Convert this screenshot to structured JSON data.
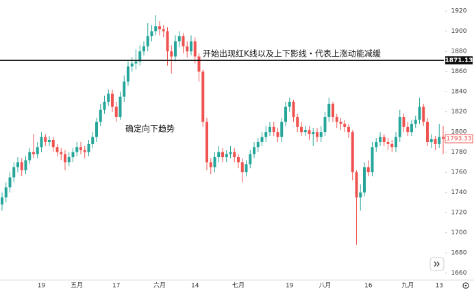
{
  "chart_data": {
    "type": "candlestick",
    "annotations": [
      "开始出现红K线以及上下影线・代表上涨动能减缓",
      "确定向下趋势"
    ],
    "hline": 1871.13,
    "up_color": "#26a69a",
    "down_color": "#ef5350",
    "ylim": [
      1653,
      1931
    ],
    "yticks": [
      1660,
      1680,
      1700,
      1720,
      1740,
      1760,
      1780,
      1800,
      1820,
      1840,
      1860,
      1880,
      1900,
      1920
    ],
    "categories": [
      null,
      null,
      null,
      null,
      null,
      null,
      null,
      null,
      null,
      null,
      "19",
      null,
      null,
      null,
      null,
      null,
      null,
      null,
      null,
      "五月",
      null,
      null,
      null,
      null,
      null,
      null,
      null,
      null,
      null,
      "17",
      null,
      null,
      null,
      null,
      null,
      null,
      null,
      null,
      null,
      null,
      "六月",
      null,
      null,
      null,
      null,
      null,
      null,
      null,
      null,
      "14",
      null,
      null,
      null,
      null,
      null,
      null,
      null,
      null,
      null,
      null,
      "七月",
      null,
      null,
      null,
      null,
      null,
      null,
      null,
      null,
      null,
      null,
      null,
      null,
      "19",
      null,
      null,
      null,
      null,
      null,
      null,
      null,
      null,
      "八月",
      null,
      null,
      null,
      null,
      null,
      null,
      null,
      null,
      null,
      null,
      "16",
      null,
      null,
      null,
      null,
      null,
      null,
      null,
      null,
      null,
      "九月",
      null,
      null,
      null,
      null,
      null,
      null,
      null,
      "13",
      null
    ],
    "open": [
      1728,
      1735,
      1745,
      1755,
      1765,
      1770,
      1762,
      1772,
      1780,
      1778,
      1785,
      1795,
      1790,
      1792,
      1785,
      1780,
      1778,
      1770,
      1775,
      1780,
      1785,
      1782,
      1780,
      1788,
      1795,
      1810,
      1822,
      1830,
      1838,
      1825,
      1815,
      1835,
      1850,
      1865,
      1868,
      1870,
      1880,
      1885,
      1895,
      1900,
      1905,
      1902,
      1900,
      1880,
      1875,
      1890,
      1895,
      1885,
      1880,
      1890,
      1875,
      1860,
      1810,
      1770,
      1765,
      1775,
      1780,
      1775,
      1778,
      1780,
      1775,
      1770,
      1760,
      1768,
      1778,
      1785,
      1790,
      1795,
      1800,
      1805,
      1800,
      1795,
      1810,
      1825,
      1830,
      1815,
      1805,
      1800,
      1802,
      1798,
      1800,
      1795,
      1800,
      1815,
      1828,
      1815,
      1810,
      1808,
      1805,
      1800,
      1760,
      1735,
      1740,
      1765,
      1760,
      1785,
      1790,
      1795,
      1790,
      1788,
      1785,
      1795,
      1815,
      1805,
      1800,
      1808,
      1812,
      1825,
      1810,
      1790,
      1793,
      1788,
      1795
    ],
    "high": [
      1740,
      1750,
      1760,
      1770,
      1775,
      1774,
      1776,
      1784,
      1798,
      1790,
      1800,
      1798,
      1796,
      1795,
      1788,
      1784,
      1782,
      1780,
      1784,
      1790,
      1790,
      1786,
      1792,
      1800,
      1814,
      1828,
      1836,
      1842,
      1842,
      1830,
      1840,
      1856,
      1870,
      1874,
      1882,
      1886,
      1890,
      1908,
      1906,
      1916,
      1910,
      1906,
      1904,
      1886,
      1896,
      1900,
      1898,
      1890,
      1896,
      1894,
      1878,
      1862,
      1814,
      1774,
      1780,
      1786,
      1784,
      1782,
      1786,
      1784,
      1778,
      1774,
      1772,
      1782,
      1790,
      1794,
      1800,
      1806,
      1810,
      1810,
      1804,
      1814,
      1830,
      1834,
      1832,
      1818,
      1810,
      1806,
      1806,
      1804,
      1804,
      1806,
      1820,
      1834,
      1830,
      1818,
      1814,
      1812,
      1808,
      1802,
      1762,
      1748,
      1770,
      1772,
      1790,
      1794,
      1800,
      1798,
      1794,
      1792,
      1800,
      1822,
      1818,
      1810,
      1812,
      1816,
      1834,
      1828,
      1814,
      1798,
      1796,
      1808,
      1806
    ],
    "low": [
      1722,
      1730,
      1740,
      1750,
      1760,
      1756,
      1758,
      1768,
      1774,
      1774,
      1780,
      1786,
      1786,
      1780,
      1776,
      1772,
      1762,
      1766,
      1770,
      1776,
      1778,
      1774,
      1776,
      1784,
      1790,
      1806,
      1818,
      1826,
      1820,
      1810,
      1812,
      1830,
      1846,
      1860,
      1862,
      1866,
      1876,
      1880,
      1890,
      1896,
      1896,
      1894,
      1866,
      1858,
      1870,
      1884,
      1878,
      1874,
      1876,
      1868,
      1850,
      1805,
      1762,
      1758,
      1760,
      1770,
      1770,
      1770,
      1774,
      1770,
      1764,
      1750,
      1756,
      1764,
      1774,
      1780,
      1786,
      1790,
      1796,
      1796,
      1790,
      1790,
      1806,
      1820,
      1810,
      1800,
      1796,
      1796,
      1792,
      1786,
      1790,
      1790,
      1796,
      1810,
      1810,
      1804,
      1802,
      1800,
      1794,
      1752,
      1688,
      1722,
      1736,
      1756,
      1756,
      1780,
      1786,
      1786,
      1782,
      1780,
      1780,
      1790,
      1800,
      1796,
      1796,
      1804,
      1808,
      1806,
      1786,
      1784,
      1782,
      1784,
      1778
    ],
    "close": [
      1735,
      1745,
      1755,
      1765,
      1770,
      1762,
      1772,
      1780,
      1778,
      1785,
      1795,
      1790,
      1792,
      1785,
      1780,
      1778,
      1770,
      1775,
      1780,
      1785,
      1782,
      1780,
      1788,
      1795,
      1810,
      1822,
      1830,
      1838,
      1825,
      1815,
      1835,
      1850,
      1865,
      1868,
      1870,
      1880,
      1885,
      1895,
      1900,
      1905,
      1902,
      1900,
      1880,
      1875,
      1890,
      1895,
      1885,
      1880,
      1890,
      1875,
      1860,
      1810,
      1770,
      1765,
      1775,
      1780,
      1775,
      1778,
      1780,
      1775,
      1770,
      1760,
      1768,
      1778,
      1785,
      1790,
      1795,
      1800,
      1805,
      1800,
      1795,
      1810,
      1825,
      1830,
      1815,
      1805,
      1800,
      1802,
      1798,
      1800,
      1795,
      1800,
      1815,
      1828,
      1815,
      1810,
      1808,
      1805,
      1800,
      1760,
      1735,
      1740,
      1765,
      1760,
      1785,
      1790,
      1795,
      1790,
      1788,
      1785,
      1795,
      1815,
      1805,
      1800,
      1808,
      1812,
      1825,
      1810,
      1790,
      1793,
      1788,
      1795,
      1793.33
    ]
  }
}
